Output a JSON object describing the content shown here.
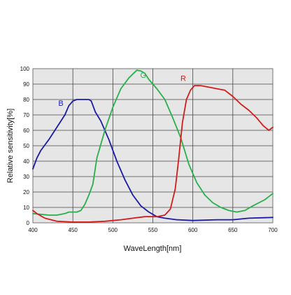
{
  "chart_data": {
    "type": "line",
    "xlabel": "WaveLength[nm]",
    "ylabel": "Relative sensitivity[%]",
    "xlim": [
      400,
      700
    ],
    "ylim": [
      0,
      100
    ],
    "x_ticks": [
      "400",
      "450",
      "500",
      "550",
      "600",
      "650",
      "700"
    ],
    "y_ticks": [
      "0",
      "10",
      "20",
      "30",
      "40",
      "50",
      "60",
      "70",
      "80",
      "90",
      "100"
    ],
    "grid": true,
    "plot_background": "#e6e6e6",
    "series": [
      {
        "name": "B",
        "color": "#1a1aa6",
        "label_at": [
          435,
          76
        ],
        "points": [
          [
            400,
            35
          ],
          [
            405,
            42
          ],
          [
            410,
            47
          ],
          [
            420,
            54
          ],
          [
            430,
            62
          ],
          [
            440,
            70
          ],
          [
            445,
            76
          ],
          [
            450,
            79
          ],
          [
            455,
            80
          ],
          [
            465,
            80
          ],
          [
            470,
            80
          ],
          [
            473,
            79
          ],
          [
            478,
            72
          ],
          [
            485,
            66
          ],
          [
            495,
            54
          ],
          [
            505,
            40
          ],
          [
            515,
            28
          ],
          [
            525,
            18
          ],
          [
            535,
            11
          ],
          [
            545,
            7
          ],
          [
            555,
            4
          ],
          [
            565,
            3
          ],
          [
            580,
            2
          ],
          [
            600,
            1.5
          ],
          [
            630,
            2
          ],
          [
            650,
            2
          ],
          [
            670,
            3
          ],
          [
            700,
            3.5
          ]
        ]
      },
      {
        "name": "G",
        "color": "#27b04a",
        "label_at": [
          538,
          94
        ],
        "points": [
          [
            400,
            6
          ],
          [
            420,
            5
          ],
          [
            430,
            5
          ],
          [
            440,
            6
          ],
          [
            445,
            7
          ],
          [
            455,
            7
          ],
          [
            460,
            8
          ],
          [
            465,
            12
          ],
          [
            470,
            18
          ],
          [
            475,
            25
          ],
          [
            480,
            42
          ],
          [
            490,
            60
          ],
          [
            500,
            75
          ],
          [
            510,
            87
          ],
          [
            520,
            94
          ],
          [
            530,
            99
          ],
          [
            535,
            98.5
          ],
          [
            540,
            97
          ],
          [
            545,
            93
          ],
          [
            555,
            87
          ],
          [
            565,
            80
          ],
          [
            575,
            68
          ],
          [
            585,
            55
          ],
          [
            595,
            38
          ],
          [
            605,
            26
          ],
          [
            615,
            18
          ],
          [
            625,
            13
          ],
          [
            635,
            10
          ],
          [
            645,
            8
          ],
          [
            655,
            7
          ],
          [
            665,
            8
          ],
          [
            675,
            11
          ],
          [
            690,
            15
          ],
          [
            700,
            19
          ]
        ]
      },
      {
        "name": "R",
        "color": "#d11c1c",
        "label_at": [
          588,
          92
        ],
        "points": [
          [
            400,
            8
          ],
          [
            405,
            6
          ],
          [
            415,
            3
          ],
          [
            430,
            1
          ],
          [
            450,
            0.5
          ],
          [
            470,
            0.5
          ],
          [
            490,
            1
          ],
          [
            510,
            2
          ],
          [
            525,
            3
          ],
          [
            540,
            4
          ],
          [
            555,
            4
          ],
          [
            565,
            5
          ],
          [
            572,
            9
          ],
          [
            578,
            22
          ],
          [
            582,
            40
          ],
          [
            587,
            65
          ],
          [
            592,
            80
          ],
          [
            597,
            86
          ],
          [
            602,
            89
          ],
          [
            610,
            89
          ],
          [
            620,
            88
          ],
          [
            630,
            87
          ],
          [
            640,
            86
          ],
          [
            650,
            82
          ],
          [
            660,
            77
          ],
          [
            670,
            73
          ],
          [
            680,
            68
          ],
          [
            688,
            63
          ],
          [
            695,
            60
          ],
          [
            700,
            62
          ]
        ]
      }
    ]
  }
}
